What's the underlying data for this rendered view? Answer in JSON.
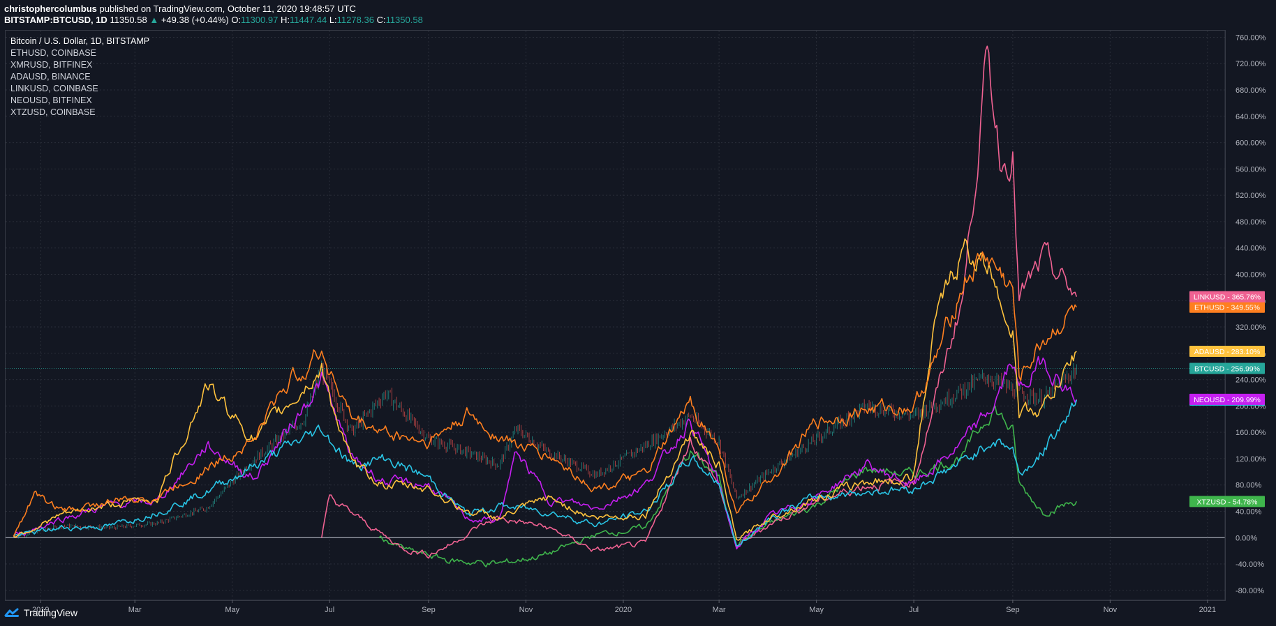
{
  "header": {
    "author": "christophercolumbus",
    "published_text": "published on TradingView.com, October 11, 2020 19:48:57 UTC",
    "symbol": "BITSTAMP:BTCUSD, 1D",
    "last": "11350.58",
    "change_arrow": "▲",
    "change": "+49.38 (+0.44%)",
    "o_label": "O:",
    "o_value": "11300.97",
    "h_label": "H:",
    "h_value": "11447.44",
    "l_label": "L:",
    "l_value": "11278.36",
    "c_label": "C:",
    "c_value": "11350.58"
  },
  "legend": [
    "Bitcoin / U.S. Dollar, 1D, BITSTAMP",
    "ETHUSD, COINBASE",
    "XMRUSD, BITFINEX",
    "ADAUSD, BINANCE",
    "LINKUSD, COINBASE",
    "NEOUSD, BITFINEX",
    "XTZUSD, COINBASE"
  ],
  "footer": {
    "brand": "TradingView"
  },
  "colors": {
    "background": "#131722",
    "grid": "#2a2e39",
    "axis_text": "#b2b5be",
    "btc_candle_up": "#26a69a",
    "btc_candle_down": "#ef5350"
  },
  "chart_data": {
    "type": "line",
    "y_scale": "percent",
    "ylim": [
      -95,
      770
    ],
    "y_ticks": [
      -80,
      -40,
      0,
      40,
      80,
      120,
      160,
      200,
      240,
      280,
      320,
      360,
      400,
      440,
      480,
      520,
      560,
      600,
      640,
      680,
      720,
      760
    ],
    "x_range": [
      "2018-12-10",
      "2021-01-12"
    ],
    "x_ticks": [
      {
        "label": "2019",
        "date": "2019-01-01"
      },
      {
        "label": "Mar",
        "date": "2019-03-01"
      },
      {
        "label": "May",
        "date": "2019-05-01"
      },
      {
        "label": "Jul",
        "date": "2019-07-01"
      },
      {
        "label": "Sep",
        "date": "2019-09-01"
      },
      {
        "label": "Nov",
        "date": "2019-11-01"
      },
      {
        "label": "2020",
        "date": "2020-01-01"
      },
      {
        "label": "Mar",
        "date": "2020-03-01"
      },
      {
        "label": "May",
        "date": "2020-05-01"
      },
      {
        "label": "Jul",
        "date": "2020-07-01"
      },
      {
        "label": "Sep",
        "date": "2020-09-01"
      },
      {
        "label": "Nov",
        "date": "2020-11-01"
      },
      {
        "label": "2021",
        "date": "2021-01-01"
      }
    ],
    "series": [
      {
        "name": "BTCUSD",
        "color": "#26a69a",
        "style": "candles",
        "last_label": "256.99%",
        "x": [
          "2018-12-15",
          "2019-01-15",
          "2019-02-15",
          "2019-03-15",
          "2019-04-15",
          "2019-05-15",
          "2019-06-15",
          "2019-06-26",
          "2019-07-15",
          "2019-08-05",
          "2019-09-01",
          "2019-09-25",
          "2019-10-15",
          "2019-10-26",
          "2019-11-15",
          "2019-12-15",
          "2020-01-15",
          "2020-02-12",
          "2020-03-01",
          "2020-03-12",
          "2020-04-01",
          "2020-05-01",
          "2020-06-01",
          "2020-07-01",
          "2020-07-25",
          "2020-08-15",
          "2020-09-05",
          "2020-09-20",
          "2020-10-11"
        ],
        "y": [
          2,
          18,
          15,
          22,
          45,
          120,
          180,
          255,
          160,
          220,
          150,
          130,
          110,
          165,
          130,
          95,
          140,
          185,
          145,
          60,
          100,
          150,
          200,
          185,
          215,
          245,
          220,
          210,
          257
        ]
      },
      {
        "name": "ETHUSD",
        "color": "#ff7f1f",
        "last_label": "349.55%",
        "x": [
          "2018-12-15",
          "2018-12-28",
          "2019-01-15",
          "2019-02-15",
          "2019-03-15",
          "2019-04-15",
          "2019-05-15",
          "2019-06-01",
          "2019-06-26",
          "2019-07-15",
          "2019-08-05",
          "2019-09-01",
          "2019-09-25",
          "2019-10-15",
          "2019-11-01",
          "2019-11-15",
          "2019-12-15",
          "2020-01-15",
          "2020-02-12",
          "2020-03-01",
          "2020-03-12",
          "2020-04-01",
          "2020-05-01",
          "2020-06-01",
          "2020-07-01",
          "2020-07-15",
          "2020-08-01",
          "2020-08-15",
          "2020-09-01",
          "2020-09-05",
          "2020-09-20",
          "2020-10-11"
        ],
        "y": [
          2,
          65,
          40,
          55,
          62,
          105,
          150,
          225,
          285,
          180,
          160,
          145,
          185,
          155,
          135,
          125,
          75,
          95,
          205,
          135,
          35,
          85,
          175,
          195,
          200,
          270,
          390,
          430,
          375,
          240,
          300,
          350
        ]
      },
      {
        "name": "XMRUSD",
        "color": "#29c5e6",
        "last_label": "208.55%",
        "x": [
          "2018-12-15",
          "2019-01-15",
          "2019-02-15",
          "2019-03-15",
          "2019-04-15",
          "2019-05-15",
          "2019-06-26",
          "2019-07-15",
          "2019-08-05",
          "2019-09-01",
          "2019-09-25",
          "2019-10-15",
          "2019-11-15",
          "2019-12-15",
          "2020-01-15",
          "2020-02-12",
          "2020-03-01",
          "2020-03-12",
          "2020-04-01",
          "2020-05-01",
          "2020-06-01",
          "2020-07-01",
          "2020-08-01",
          "2020-08-20",
          "2020-09-01",
          "2020-09-05",
          "2020-09-20",
          "2020-10-11"
        ],
        "y": [
          2,
          15,
          18,
          40,
          70,
          110,
          165,
          110,
          120,
          90,
          35,
          48,
          40,
          20,
          40,
          120,
          85,
          -15,
          30,
          62,
          70,
          75,
          115,
          150,
          135,
          95,
          130,
          209
        ]
      },
      {
        "name": "ADAUSD",
        "color": "#ffc23d",
        "last_label": "283.10%",
        "x": [
          "2018-12-15",
          "2019-01-15",
          "2019-02-15",
          "2019-03-15",
          "2019-04-15",
          "2019-05-15",
          "2019-06-26",
          "2019-07-15",
          "2019-08-05",
          "2019-09-01",
          "2019-09-25",
          "2019-10-15",
          "2019-11-15",
          "2019-12-15",
          "2020-01-15",
          "2020-02-12",
          "2020-03-01",
          "2020-03-12",
          "2020-04-01",
          "2020-05-01",
          "2020-06-01",
          "2020-06-30",
          "2020-07-15",
          "2020-08-01",
          "2020-08-20",
          "2020-09-01",
          "2020-09-05",
          "2020-09-20",
          "2020-10-11"
        ],
        "y": [
          2,
          35,
          50,
          60,
          230,
          150,
          255,
          110,
          80,
          75,
          40,
          30,
          60,
          30,
          35,
          160,
          110,
          -5,
          30,
          60,
          85,
          90,
          330,
          440,
          400,
          315,
          190,
          195,
          283
        ]
      },
      {
        "name": "LINKUSD",
        "color": "#f06292",
        "last_label": "365.76%",
        "x": [
          "2019-06-26",
          "2019-07-01",
          "2019-07-25",
          "2019-08-15",
          "2019-09-01",
          "2019-09-15",
          "2019-10-01",
          "2019-10-15",
          "2019-11-15",
          "2019-12-15",
          "2020-01-15",
          "2020-02-12",
          "2020-03-01",
          "2020-03-12",
          "2020-04-01",
          "2020-05-01",
          "2020-06-01",
          "2020-07-01",
          "2020-07-15",
          "2020-08-01",
          "2020-08-16",
          "2020-08-25",
          "2020-09-01",
          "2020-09-05",
          "2020-09-20",
          "2020-10-11"
        ],
        "y": [
          0,
          60,
          20,
          -15,
          -25,
          -10,
          15,
          30,
          15,
          -20,
          -10,
          150,
          80,
          -15,
          20,
          55,
          80,
          85,
          215,
          370,
          730,
          570,
          590,
          360,
          420,
          366
        ]
      },
      {
        "name": "NEOUSD",
        "color": "#c51ff0",
        "last_label": "209.99%",
        "x": [
          "2018-12-15",
          "2019-01-15",
          "2019-02-15",
          "2019-03-15",
          "2019-04-15",
          "2019-05-15",
          "2019-06-26",
          "2019-07-15",
          "2019-08-05",
          "2019-09-01",
          "2019-09-25",
          "2019-10-15",
          "2019-10-26",
          "2019-11-15",
          "2019-12-15",
          "2020-01-15",
          "2020-02-12",
          "2020-03-01",
          "2020-03-12",
          "2020-04-01",
          "2020-05-01",
          "2020-06-01",
          "2020-07-01",
          "2020-08-01",
          "2020-08-20",
          "2020-09-01",
          "2020-09-05",
          "2020-09-20",
          "2020-10-11"
        ],
        "y": [
          2,
          30,
          50,
          55,
          140,
          90,
          240,
          120,
          85,
          80,
          30,
          25,
          130,
          60,
          45,
          80,
          180,
          80,
          -15,
          30,
          62,
          110,
          80,
          145,
          200,
          270,
          220,
          270,
          210
        ]
      },
      {
        "name": "XTZUSD",
        "color": "#3fb54c",
        "last_label": "54.78%",
        "x": [
          "2019-08-01",
          "2019-08-20",
          "2019-09-15",
          "2019-10-15",
          "2019-11-15",
          "2019-12-15",
          "2020-01-15",
          "2020-02-12",
          "2020-03-01",
          "2020-03-12",
          "2020-04-01",
          "2020-05-01",
          "2020-06-01",
          "2020-07-01",
          "2020-08-01",
          "2020-08-20",
          "2020-09-01",
          "2020-09-05",
          "2020-09-20",
          "2020-10-11"
        ],
        "y": [
          0,
          -20,
          -35,
          -40,
          -25,
          5,
          15,
          130,
          90,
          -10,
          20,
          50,
          105,
          95,
          125,
          200,
          160,
          80,
          40,
          55
        ]
      }
    ]
  }
}
